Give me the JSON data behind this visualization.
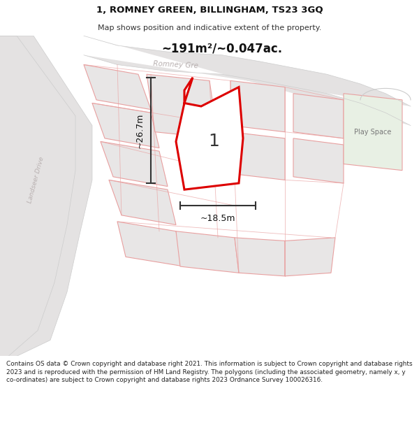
{
  "title_line1": "1, ROMNEY GREEN, BILLINGHAM, TS23 3GQ",
  "title_line2": "Map shows position and indicative extent of the property.",
  "area_text": "~191m²/~0.047ac.",
  "width_label": "~18.5m",
  "height_label": "~26.7m",
  "parcel_label": "1",
  "play_space_label": "Play Space",
  "landseer_drive_label": "Landseer Drive",
  "romney_green_label": "Romney Gre",
  "footer_text": "Contains OS data © Crown copyright and database right 2021. This information is subject to Crown copyright and database rights 2023 and is reproduced with the permission of HM Land Registry. The polygons (including the associated geometry, namely x, y co-ordinates) are subject to Crown copyright and database rights 2023 Ordnance Survey 100026316.",
  "bg_color": "#ffffff",
  "map_bg_color": "#f7f5f5",
  "plot_fill_color": "#e8e6e6",
  "plot_edge_color": "#e8a0a0",
  "highlight_edge_color": "#dd0000",
  "highlight_fill_color": "#ffffff",
  "play_space_fill": "#e8f0e4",
  "road_fill": "#e4e2e2",
  "dim_line_color": "#333333",
  "text_color": "#333333",
  "gray_text_color": "#b0aaaa",
  "road_label_color": "#b8b0b0"
}
